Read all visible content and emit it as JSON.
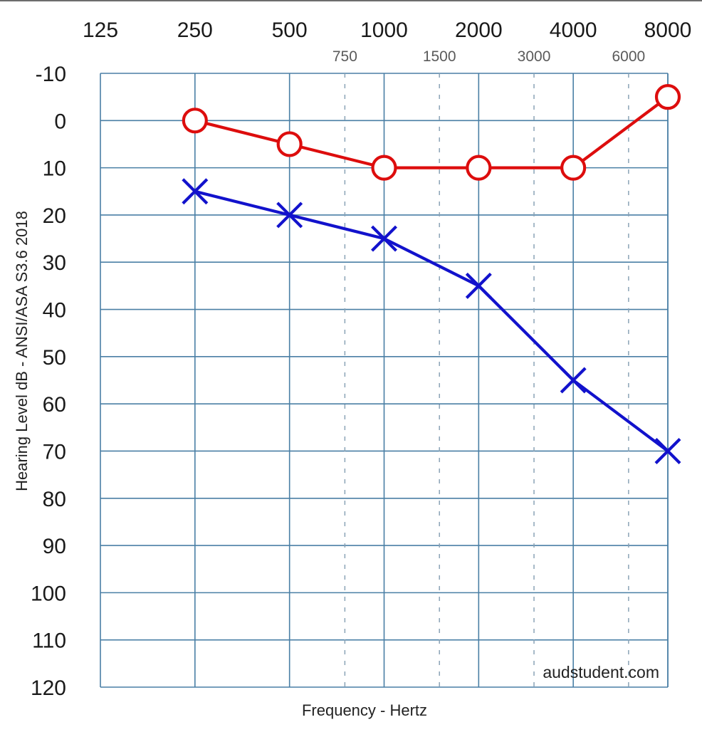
{
  "chart_data": {
    "type": "line",
    "xlabel": "Frequency - Hertz",
    "ylabel": "Hearing Level dB - ANSI/ASA S3.6 2018",
    "x_scale": "log2",
    "xlim": [
      125,
      8000
    ],
    "ylim": [
      -10,
      120
    ],
    "y_inverted": true,
    "y_ticks": [
      -10,
      0,
      10,
      20,
      30,
      40,
      50,
      60,
      70,
      80,
      90,
      100,
      110,
      120
    ],
    "x_major_ticks": [
      125,
      250,
      500,
      1000,
      2000,
      4000,
      8000
    ],
    "x_minor_ticks": [
      750,
      1500,
      3000,
      6000
    ],
    "grid": true,
    "grid_color": "#4a7fa5",
    "minor_grid_color": "#8aa3b6",
    "series": [
      {
        "marker": "circle",
        "color": "#dd0d0d",
        "x": [
          250,
          500,
          1000,
          2000,
          4000,
          8000
        ],
        "values": [
          0,
          5,
          10,
          10,
          10,
          -5
        ]
      },
      {
        "marker": "x",
        "color": "#1212cc",
        "x": [
          250,
          500,
          1000,
          2000,
          4000,
          8000
        ],
        "values": [
          15,
          20,
          25,
          35,
          55,
          70
        ]
      }
    ],
    "watermark": "audstudent.com"
  }
}
